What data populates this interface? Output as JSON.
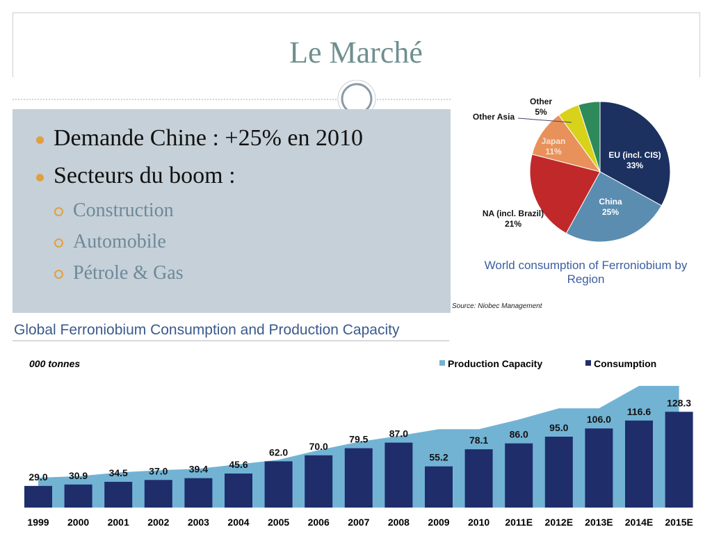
{
  "title": "Le Marché",
  "bullets": [
    {
      "text": "Demande Chine : +25% en 2010"
    },
    {
      "text": "Secteurs du boom :",
      "sub": [
        "Construction",
        "Automobile",
        "Pétrole & Gas"
      ]
    }
  ],
  "chart_data": [
    {
      "type": "pie",
      "title": "World consumption of Ferroniobium by Region",
      "source": "Source: Niobec Management",
      "categories": [
        "EU (incl. CIS)",
        "China",
        "NA (incl. Brazil)",
        "Japan",
        "Other Asia",
        "Other"
      ],
      "values": [
        33,
        25,
        21,
        11,
        5,
        5
      ],
      "value_labels": [
        "33%",
        "25%",
        "21%",
        "11%",
        null,
        "5%"
      ],
      "colors": [
        "#1c3160",
        "#5b8db0",
        "#c0282a",
        "#e8915a",
        "#d8d21a",
        "#2e8a5a"
      ]
    },
    {
      "type": "bar",
      "title": "Global Ferroniobium Consumption and Production Capacity",
      "unit_label": "000 tonnes",
      "categories": [
        "1999",
        "2000",
        "2001",
        "2002",
        "2003",
        "2004",
        "2005",
        "2006",
        "2007",
        "2008",
        "2009",
        "2010",
        "2011E",
        "2012E",
        "2013E",
        "2014E",
        "2015E"
      ],
      "series": [
        {
          "name": "Production Capacity",
          "type": "area",
          "color": "#72b3d4",
          "values": [
            40,
            42,
            47,
            50,
            52,
            58,
            64,
            77,
            88,
            96,
            105,
            105,
            118,
            133,
            133,
            163,
            163
          ]
        },
        {
          "name": "Consumption",
          "type": "bar",
          "color": "#1f2d6b",
          "values": [
            29.0,
            30.9,
            34.5,
            37.0,
            39.4,
            45.6,
            62.0,
            70.0,
            79.5,
            87.0,
            55.2,
            78.1,
            86.0,
            95.0,
            106.0,
            116.6,
            128.3
          ],
          "value_labels": [
            "29.0",
            "30.9",
            "34.5",
            "37.0",
            "39.4",
            "45.6",
            "62.0",
            "70.0",
            "79.5",
            "87.0",
            "55.2",
            "78.1",
            "86.0",
            "95.0",
            "106.0",
            "116.6",
            "128.3"
          ]
        }
      ],
      "legend": "top-right"
    }
  ]
}
